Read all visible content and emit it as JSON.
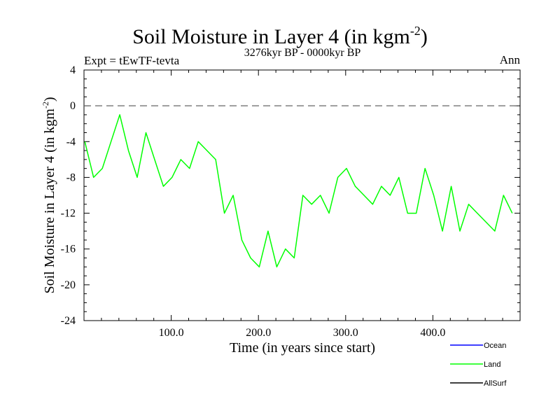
{
  "chart_data": {
    "type": "line",
    "title": "Soil Moisture in Layer 4 (in kgm",
    "title_superscript": "-2",
    "title_close": ")",
    "subtitle": "3276kyr BP - 0000kyr BP",
    "left_label": "Expt = tEwTF-tevta",
    "right_label": "Ann",
    "xlabel": "Time (in years since start)",
    "ylabel": "Soil Moisture in Layer 4 (in kgm",
    "ylabel_superscript": "-2",
    "ylabel_close": ")",
    "xlim": [
      0,
      500
    ],
    "ylim": [
      -24,
      4
    ],
    "x_ticks": [
      100,
      200,
      300,
      400
    ],
    "x_tick_labels": [
      "100.0",
      "200.0",
      "300.0",
      "400.0"
    ],
    "y_ticks": [
      4,
      0,
      -4,
      -8,
      -12,
      -16,
      -20,
      -24
    ],
    "y_tick_labels": [
      "4",
      "0",
      "-4",
      "-8",
      "-12",
      "-16",
      "-20",
      "-24"
    ],
    "reference_line": 0,
    "legend": [
      {
        "name": "Ocean",
        "color": "#0000ff"
      },
      {
        "name": "Land",
        "color": "#00ff00"
      },
      {
        "name": "AllSurf",
        "color": "#000000"
      }
    ],
    "series": [
      {
        "name": "Land",
        "color": "#00ff00",
        "x_start": 1,
        "x_step": 10,
        "values": [
          -4,
          -8,
          -7,
          -4,
          -1,
          -5,
          -8,
          -3,
          -6,
          -9,
          -8,
          -6,
          -7,
          -4,
          -5,
          -6,
          -12,
          -10,
          -15,
          -17,
          -18,
          -14,
          -18,
          -16,
          -17,
          -10,
          -11,
          -10,
          -12,
          -8,
          -7,
          -9,
          -10,
          -11,
          -9,
          -10,
          -8,
          -12,
          -12,
          -7,
          -10,
          -14,
          -9,
          -14,
          -11,
          -12,
          -13,
          -14,
          -10,
          -12
        ]
      }
    ]
  }
}
